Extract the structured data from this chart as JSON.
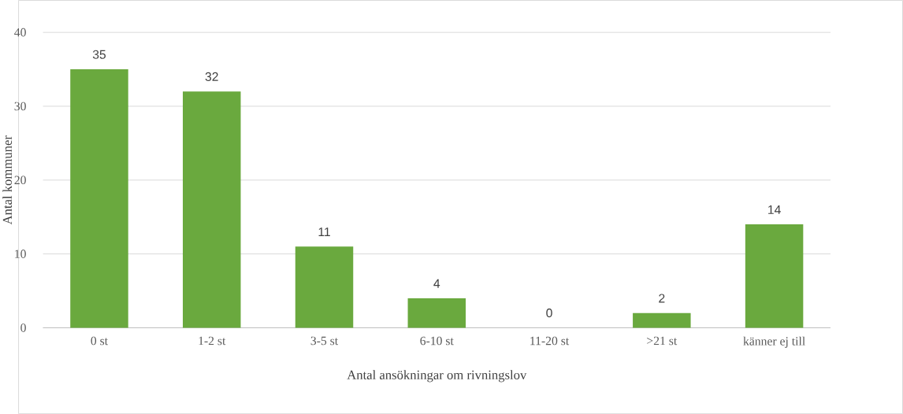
{
  "chart_data": {
    "type": "bar",
    "xlabel": "Antal ansökningar om rivningslov",
    "ylabel": "Antal kommuner",
    "categories": [
      "0 st",
      "1-2 st",
      "3-5 st",
      "6-10 st",
      "11-20 st",
      ">21 st",
      "känner ej till"
    ],
    "values": [
      35,
      32,
      11,
      4,
      0,
      2,
      14
    ],
    "color": "#6aa93e",
    "ylim": [
      0,
      40
    ],
    "yticks": [
      0,
      10,
      20,
      30,
      40
    ],
    "grid": "y",
    "data_labels": true
  }
}
